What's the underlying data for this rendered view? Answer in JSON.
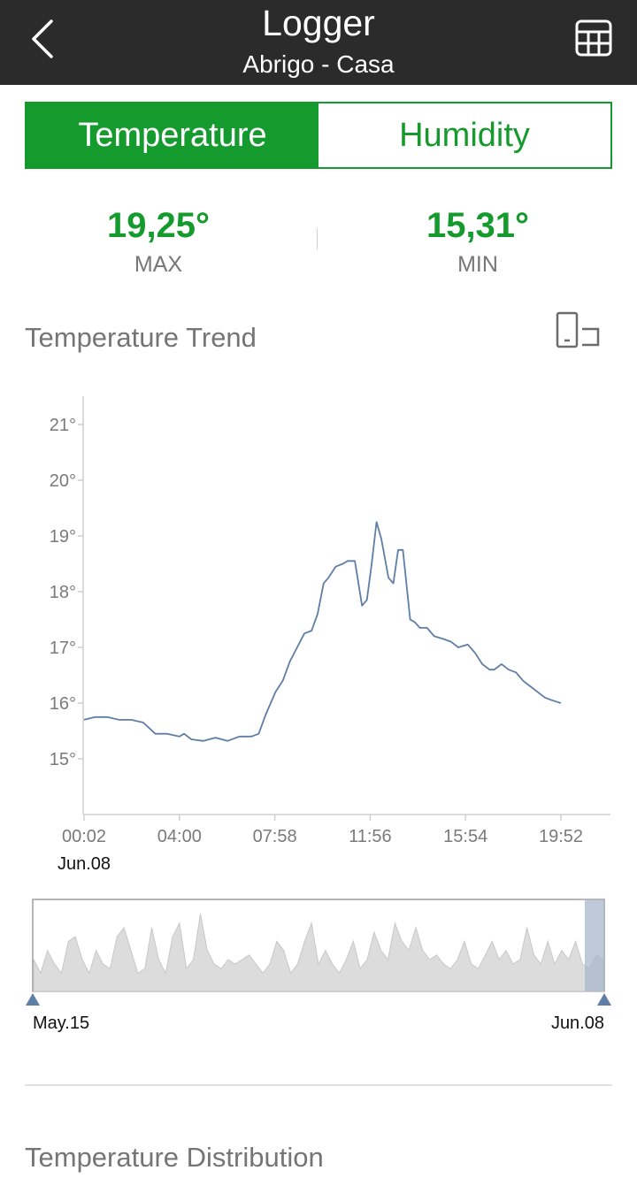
{
  "header": {
    "title": "Logger",
    "subtitle": "Abrigo - Casa"
  },
  "tabs": [
    {
      "label": "Temperature",
      "active": true
    },
    {
      "label": "Humidity",
      "active": false
    }
  ],
  "stats": {
    "max": {
      "value": "19,25°",
      "label": "MAX"
    },
    "min": {
      "value": "15,31°",
      "label": "MIN"
    }
  },
  "trend": {
    "title": "Temperature Trend"
  },
  "distribution": {
    "title": "Temperature Distribution"
  },
  "colors": {
    "accent": "#159a2e",
    "line": "#5f7ea6",
    "header": "#2b2b2b"
  },
  "icons": {
    "back": "chevron-left-icon",
    "table": "table-grid-icon",
    "rotate": "rotate-screen-icon"
  },
  "chart_data": {
    "type": "line",
    "y_ticks": [
      "21°",
      "20°",
      "19°",
      "18°",
      "17°",
      "16°",
      "15°"
    ],
    "y_tick_values": [
      21,
      20,
      19,
      18,
      17,
      16,
      15
    ],
    "ylim": [
      14,
      21.5
    ],
    "x_ticks": [
      "00:02",
      "04:00",
      "07:58",
      "11:56",
      "15:54",
      "19:52"
    ],
    "date_label": "Jun.08",
    "x_hours": [
      0.03,
      0.5,
      1.0,
      1.5,
      2.0,
      2.5,
      3.0,
      3.5,
      4.0,
      4.2,
      4.5,
      5.0,
      5.5,
      6.0,
      6.5,
      7.0,
      7.3,
      7.6,
      8.0,
      8.3,
      8.6,
      8.9,
      9.2,
      9.5,
      9.75,
      10.0,
      10.2,
      10.5,
      10.8,
      11.0,
      11.3,
      11.6,
      11.8,
      12.0,
      12.2,
      12.4,
      12.7,
      12.9,
      13.1,
      13.3,
      13.6,
      13.8,
      14.0,
      14.3,
      14.6,
      15.0,
      15.3,
      15.6,
      16.0,
      16.3,
      16.6,
      16.9,
      17.1,
      17.4,
      17.7,
      18.0,
      18.3,
      18.6,
      18.9,
      19.2,
      19.5,
      19.87
    ],
    "y_values": [
      15.7,
      15.75,
      15.75,
      15.7,
      15.7,
      15.65,
      15.45,
      15.45,
      15.4,
      15.45,
      15.35,
      15.32,
      15.38,
      15.32,
      15.4,
      15.4,
      15.45,
      15.8,
      16.2,
      16.4,
      16.75,
      17.0,
      17.25,
      17.3,
      17.6,
      18.15,
      18.25,
      18.45,
      18.5,
      18.55,
      18.55,
      17.75,
      17.85,
      18.5,
      19.25,
      18.95,
      18.25,
      18.15,
      18.75,
      18.75,
      17.5,
      17.45,
      17.35,
      17.35,
      17.2,
      17.15,
      17.1,
      17.0,
      17.05,
      16.9,
      16.7,
      16.6,
      16.6,
      16.7,
      16.6,
      16.55,
      16.4,
      16.3,
      16.2,
      16.1,
      16.05,
      16.0
    ],
    "navigator": {
      "start_label": "May.15",
      "end_label": "Jun.08",
      "values": [
        0.35,
        0.2,
        0.45,
        0.3,
        0.2,
        0.55,
        0.6,
        0.35,
        0.2,
        0.45,
        0.3,
        0.25,
        0.6,
        0.7,
        0.45,
        0.2,
        0.25,
        0.7,
        0.35,
        0.2,
        0.6,
        0.75,
        0.25,
        0.35,
        0.85,
        0.45,
        0.3,
        0.25,
        0.35,
        0.3,
        0.35,
        0.4,
        0.3,
        0.2,
        0.3,
        0.55,
        0.45,
        0.2,
        0.3,
        0.55,
        0.75,
        0.3,
        0.45,
        0.3,
        0.2,
        0.35,
        0.55,
        0.25,
        0.35,
        0.65,
        0.45,
        0.35,
        0.75,
        0.55,
        0.45,
        0.7,
        0.45,
        0.35,
        0.4,
        0.3,
        0.25,
        0.35,
        0.55,
        0.3,
        0.25,
        0.4,
        0.55,
        0.35,
        0.45,
        0.3,
        0.35,
        0.7,
        0.4,
        0.3,
        0.55,
        0.3,
        0.45,
        0.35,
        0.55,
        0.3,
        0.25,
        0.4,
        0.35
      ]
    }
  }
}
